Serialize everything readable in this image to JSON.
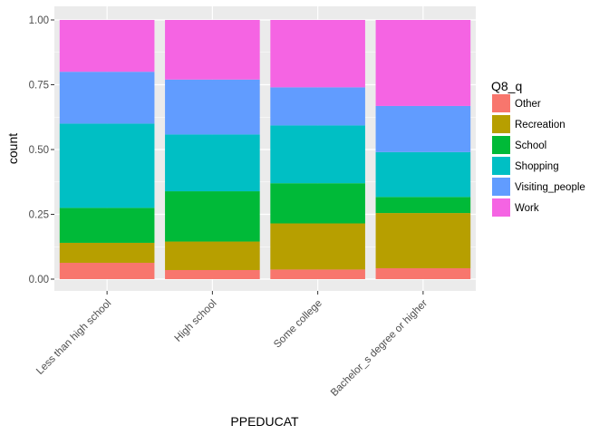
{
  "chart_data": {
    "type": "bar",
    "stacked": true,
    "categories": [
      "Less than high school",
      "High school",
      "Some college",
      "Bachelor_s degree or higher"
    ],
    "xlabel": "PPEDUCAT",
    "ylabel": "count",
    "ylim": [
      0,
      1
    ],
    "yticks": [
      0,
      0.25,
      0.5,
      0.75,
      1
    ],
    "ytick_labels": [
      "0.00",
      "0.25",
      "0.50",
      "0.75",
      "1.00"
    ],
    "grid": true,
    "legend": {
      "title": "Q8_q",
      "position": "right"
    },
    "series": [
      {
        "name": "Other",
        "color": "#F8766D",
        "values": [
          0.063,
          0.035,
          0.037,
          0.042
        ]
      },
      {
        "name": "Recreation",
        "color": "#B79F00",
        "values": [
          0.077,
          0.11,
          0.178,
          0.213
        ]
      },
      {
        "name": "School",
        "color": "#00BA38",
        "values": [
          0.135,
          0.194,
          0.155,
          0.062
        ]
      },
      {
        "name": "Shopping",
        "color": "#00BFC4",
        "values": [
          0.325,
          0.219,
          0.223,
          0.173
        ]
      },
      {
        "name": "Visiting_people",
        "color": "#619CFF",
        "values": [
          0.2,
          0.212,
          0.147,
          0.178
        ]
      },
      {
        "name": "Work",
        "color": "#F564E3",
        "values": [
          0.2,
          0.23,
          0.26,
          0.332
        ]
      }
    ]
  }
}
